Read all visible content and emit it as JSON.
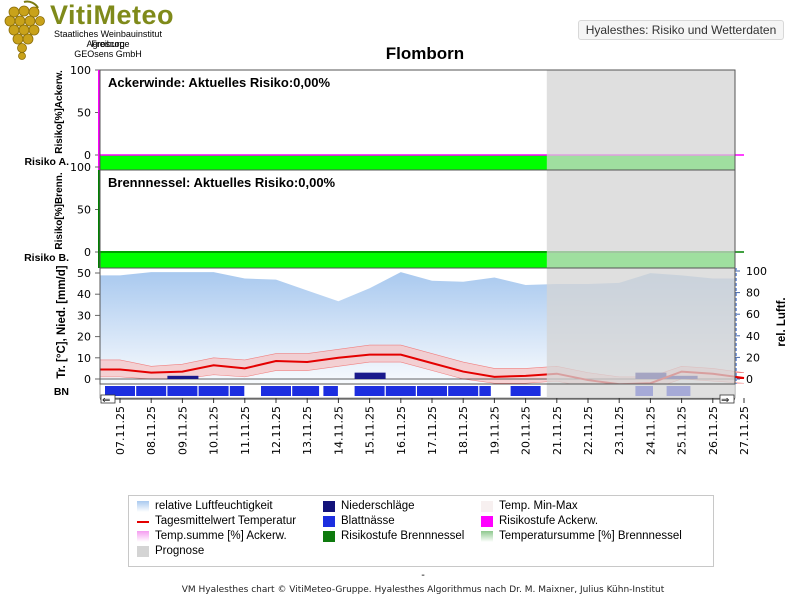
{
  "logo": {
    "title": "VitiMeteo",
    "lines": [
      "Staatliches Weinbauinstitut Freiburg",
      "Agroscope",
      "GEOsens GmbH"
    ]
  },
  "header_button": "Hyalesthes: Risiko und Wetterdaten",
  "page_title": "Flomborn",
  "chart_data": {
    "type": "line",
    "dates": [
      "07.11.25",
      "08.11.25",
      "09.11.25",
      "10.11.25",
      "11.11.25",
      "12.11.25",
      "13.11.25",
      "14.11.25",
      "15.11.25",
      "16.11.25",
      "17.11.25",
      "18.11.25",
      "19.11.25",
      "20.11.25",
      "21.11.25",
      "22.11.25",
      "23.11.25",
      "24.11.25",
      "25.11.25",
      "26.11.25",
      "27.11.25"
    ],
    "forecast_from": "21.11.25",
    "panels": [
      {
        "name": "ackerwinde",
        "header": "Ackerwinde: Aktuelles Risiko:0,00%",
        "ylabel": "Risiko[%]Ackerw.",
        "stage_label": "Risiko A.",
        "yticks": [
          0,
          50,
          100
        ],
        "ylim": [
          -5,
          105
        ],
        "risk_values": [
          0,
          0,
          0,
          0,
          0,
          0,
          0,
          0,
          0,
          0,
          0,
          0,
          0,
          0,
          0,
          0,
          0,
          0,
          0,
          0,
          0
        ],
        "stage_color": "#00ff00",
        "line_color": "#ff00ff"
      },
      {
        "name": "brennnessel",
        "header": "Brennnessel: Aktuelles Risiko:0,00%",
        "ylabel": "Risiko[%]Brenn.",
        "stage_label": "Risiko B.",
        "yticks": [
          0,
          50,
          100
        ],
        "ylim": [
          -5,
          105
        ],
        "risk_values": [
          0,
          0,
          0,
          0,
          0,
          0,
          0,
          0,
          0,
          0,
          0,
          0,
          0,
          0,
          0,
          0,
          0,
          0,
          0,
          0,
          0
        ],
        "stage_color": "#00ff00",
        "line_color": "#008000"
      }
    ],
    "weather": {
      "ylabel_left": "Tr. [°C], Nied. [mm/d]",
      "ylabel_right": "rel. Luftf.",
      "bn_label": "BN",
      "yticks_left": [
        0,
        10,
        20,
        30,
        40,
        50
      ],
      "ylim_left": [
        -5,
        52
      ],
      "yticks_right": [
        0,
        20,
        40,
        60,
        80,
        100
      ],
      "ylim_right": [
        -5,
        100
      ],
      "humidity": [
        96,
        99,
        99,
        99,
        93,
        92,
        82,
        72,
        84,
        99,
        91,
        90,
        94,
        87,
        88,
        88,
        89,
        98,
        96,
        93,
        93
      ],
      "temp_mean": [
        4.5,
        3.0,
        3.5,
        6.5,
        5.0,
        8.5,
        8.0,
        10.0,
        11.5,
        11.5,
        7.5,
        3.5,
        1.0,
        1.5,
        2.5,
        -0.5,
        -2.5,
        -2.0,
        3.5,
        2.5,
        0.5
      ],
      "temp_max": [
        9,
        6,
        7,
        10,
        9,
        12,
        12,
        14,
        16,
        16,
        12,
        8,
        5,
        5,
        6,
        3,
        1,
        1,
        6,
        5,
        3
      ],
      "temp_min": [
        1,
        0,
        0,
        2,
        1,
        4,
        4,
        6,
        8,
        8,
        4,
        0,
        -2,
        -2,
        -1,
        -4,
        -6,
        -5,
        0,
        -1,
        -2
      ],
      "precipitation": [
        0,
        0,
        1.5,
        0,
        0,
        0,
        0,
        0,
        3.0,
        0,
        0,
        0,
        0,
        0,
        0,
        0,
        0,
        3.0,
        1.5,
        0,
        0
      ],
      "leaf_wetness": [
        1,
        1,
        1,
        1,
        0.5,
        1,
        0.9,
        0.5,
        1,
        1,
        1,
        1,
        0.4,
        1,
        0,
        0,
        0,
        0.6,
        0.8,
        0,
        0
      ],
      "colors": {
        "humidity": "#a9c9ef",
        "temp_mean": "#e40000",
        "temp_band": "#f6c0c0",
        "precipitation": "#1a1a8c",
        "leaf_wetness": "#1c2ee0",
        "forecast": "#d4d4d4"
      }
    }
  },
  "legend": [
    {
      "label": "relative Luftfeuchtigkeit",
      "color": "#a9c9ef",
      "kind": "fade"
    },
    {
      "label": "Niederschläge",
      "color": "#12127a",
      "kind": "box"
    },
    {
      "label": "Temp. Min-Max",
      "color": "#f7f0f0",
      "kind": "box"
    },
    {
      "label": "Tagesmittelwert Temperatur",
      "color": "#e40000",
      "kind": "line"
    },
    {
      "label": "Blattnässe",
      "color": "#1c2ee0",
      "kind": "box"
    },
    {
      "label": "Risikostufe Ackerw.",
      "color": "#ff00ff",
      "kind": "box"
    },
    {
      "label": "Temp.summe [%] Ackerw.",
      "color": "#f49cf0",
      "kind": "fade"
    },
    {
      "label": "Risikostufe Brennnessel",
      "color": "#0e7a0e",
      "kind": "box"
    },
    {
      "label": "Temperatursumme [%] Brennnessel",
      "color": "#8ec88e",
      "kind": "fade"
    },
    {
      "label": "Prognose",
      "color": "#d4d4d4",
      "kind": "box"
    }
  ],
  "footer_dash": "-",
  "footer": "VM Hyalesthes chart © VitiMeteo-Gruppe. Hyalesthes Algorithmus nach Dr. M. Maixner, Julius Kühn-Institut"
}
